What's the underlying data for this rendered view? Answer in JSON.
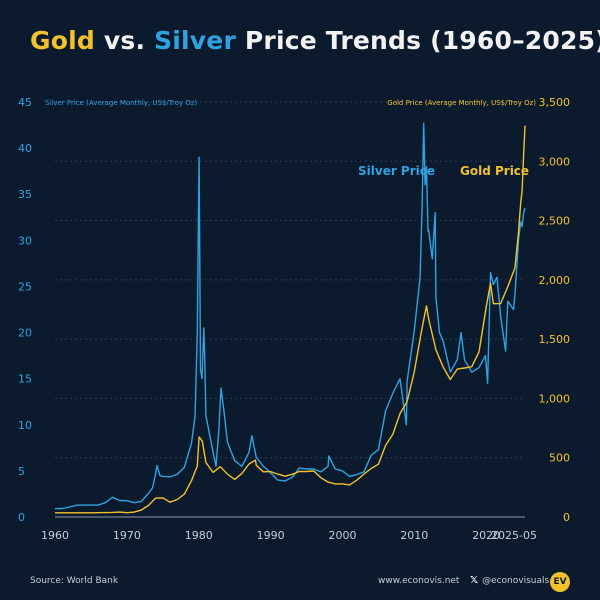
{
  "title": {
    "gold_word": "Gold",
    "vs_word": "vs.",
    "silver_word": "Silver",
    "rest": "Price Trends (1960–2025)"
  },
  "footer": {
    "source": "Source: World Bank",
    "website": "www.econovis.net",
    "social": "@econovisuals",
    "logo_text": "EV"
  },
  "colors": {
    "background": "#0c1a2e",
    "gold": "#f2c22e",
    "silver": "#2fa3e0",
    "grid": "#2a3a55",
    "text": "#c7cdd6"
  },
  "chart_data": {
    "type": "line",
    "ylabel_left": "Silver Price (Average Monthly, US$/Troy Oz)",
    "ylabel_right": "Gold Price (Average Monthly, US$/Troy Oz)",
    "ylim_left": [
      0,
      45
    ],
    "ylim_right": [
      0,
      3500
    ],
    "xlim": [
      1960,
      2025.4
    ],
    "x_ticks": [
      1960,
      1970,
      1980,
      1990,
      2000,
      2010,
      2020
    ],
    "x_tick_last": "2025-05",
    "y_ticks_left": [
      0,
      5,
      10,
      15,
      20,
      25,
      30,
      35,
      40,
      45
    ],
    "y_ticks_right": [
      0,
      500,
      1000,
      1500,
      2000,
      2500,
      3000,
      3500
    ],
    "y_ticks_right_labels": [
      "0",
      "500",
      "1,000",
      "1,500",
      "2,000",
      "2,500",
      "3,000",
      "3,500"
    ],
    "annotations": {
      "silver": "Silver Price",
      "gold": "Gold Price"
    },
    "series": [
      {
        "name": "Silver Price",
        "axis": "left",
        "points": [
          [
            1960,
            0.91
          ],
          [
            1961,
            0.92
          ],
          [
            1962,
            1.08
          ],
          [
            1963,
            1.28
          ],
          [
            1964,
            1.29
          ],
          [
            1965,
            1.29
          ],
          [
            1966,
            1.29
          ],
          [
            1967,
            1.55
          ],
          [
            1968,
            2.14
          ],
          [
            1969,
            1.79
          ],
          [
            1970,
            1.77
          ],
          [
            1971,
            1.55
          ],
          [
            1972,
            1.68
          ],
          [
            1973,
            2.56
          ],
          [
            1973.6,
            3.2
          ],
          [
            1974,
            4.7
          ],
          [
            1974.2,
            5.6
          ],
          [
            1974.6,
            4.5
          ],
          [
            1975,
            4.4
          ],
          [
            1976,
            4.35
          ],
          [
            1977,
            4.62
          ],
          [
            1978,
            5.4
          ],
          [
            1979,
            8.0
          ],
          [
            1979.5,
            11.0
          ],
          [
            1979.8,
            20.0
          ],
          [
            1980.05,
            39.0
          ],
          [
            1980.25,
            16.0
          ],
          [
            1980.45,
            15.0
          ],
          [
            1980.7,
            20.5
          ],
          [
            1980.85,
            17.0
          ],
          [
            1981,
            11.0
          ],
          [
            1981.5,
            9.0
          ],
          [
            1982,
            7.0
          ],
          [
            1982.4,
            5.5
          ],
          [
            1982.8,
            9.5
          ],
          [
            1983.1,
            14.0
          ],
          [
            1983.5,
            11.5
          ],
          [
            1984,
            8.1
          ],
          [
            1985,
            6.1
          ],
          [
            1986,
            5.5
          ],
          [
            1987,
            7.0
          ],
          [
            1987.4,
            8.8
          ],
          [
            1988,
            6.5
          ],
          [
            1989,
            5.5
          ],
          [
            1990,
            4.8
          ],
          [
            1991,
            4.0
          ],
          [
            1992,
            3.9
          ],
          [
            1993,
            4.3
          ],
          [
            1994,
            5.3
          ],
          [
            1995,
            5.2
          ],
          [
            1996,
            5.2
          ],
          [
            1997,
            4.9
          ],
          [
            1998,
            5.5
          ],
          [
            1998.1,
            6.6
          ],
          [
            1999,
            5.2
          ],
          [
            2000,
            5.0
          ],
          [
            2001,
            4.4
          ],
          [
            2002,
            4.6
          ],
          [
            2003,
            4.9
          ],
          [
            2004,
            6.7
          ],
          [
            2005,
            7.3
          ],
          [
            2006,
            11.5
          ],
          [
            2007,
            13.4
          ],
          [
            2008,
            15.0
          ],
          [
            2008.9,
            10.0
          ],
          [
            2009,
            14.7
          ],
          [
            2010,
            20.2
          ],
          [
            2010.8,
            26.0
          ],
          [
            2011.1,
            34.0
          ],
          [
            2011.3,
            42.7
          ],
          [
            2011.5,
            36.0
          ],
          [
            2011.7,
            38.0
          ],
          [
            2011.9,
            31.0
          ],
          [
            2012,
            31.1
          ],
          [
            2012.5,
            28.0
          ],
          [
            2012.9,
            33.0
          ],
          [
            2013,
            23.8
          ],
          [
            2013.5,
            20.0
          ],
          [
            2014,
            19.1
          ],
          [
            2015,
            15.7
          ],
          [
            2016,
            17.1
          ],
          [
            2016.5,
            20.0
          ],
          [
            2017,
            17.0
          ],
          [
            2018,
            15.7
          ],
          [
            2019,
            16.2
          ],
          [
            2019.9,
            17.5
          ],
          [
            2020.2,
            14.5
          ],
          [
            2020.6,
            26.5
          ],
          [
            2021,
            25.2
          ],
          [
            2021.5,
            26.0
          ],
          [
            2022,
            21.8
          ],
          [
            2022.7,
            18.0
          ],
          [
            2023,
            23.4
          ],
          [
            2023.8,
            22.5
          ],
          [
            2024,
            24.0
          ],
          [
            2024.5,
            30.0
          ],
          [
            2024.8,
            32.0
          ],
          [
            2025,
            31.5
          ],
          [
            2025.2,
            33.0
          ],
          [
            2025.4,
            33.5
          ]
        ]
      },
      {
        "name": "Gold Price",
        "axis": "right",
        "points": [
          [
            1960,
            35.3
          ],
          [
            1965,
            35.1
          ],
          [
            1968,
            39
          ],
          [
            1969,
            41
          ],
          [
            1970,
            36
          ],
          [
            1971,
            41
          ],
          [
            1972,
            58
          ],
          [
            1973,
            97
          ],
          [
            1974,
            159
          ],
          [
            1975,
            161
          ],
          [
            1976,
            125
          ],
          [
            1977,
            148
          ],
          [
            1978,
            193
          ],
          [
            1979,
            307
          ],
          [
            1979.8,
            430
          ],
          [
            1980.05,
            675
          ],
          [
            1980.5,
            640
          ],
          [
            1981,
            460
          ],
          [
            1982,
            376
          ],
          [
            1983,
            424
          ],
          [
            1984,
            361
          ],
          [
            1985,
            317
          ],
          [
            1986,
            368
          ],
          [
            1987,
            447
          ],
          [
            1987.9,
            480
          ],
          [
            1988,
            437
          ],
          [
            1989,
            381
          ],
          [
            1990,
            383
          ],
          [
            1991,
            362
          ],
          [
            1992,
            344
          ],
          [
            1993,
            360
          ],
          [
            1994,
            384
          ],
          [
            1995,
            384
          ],
          [
            1996,
            388
          ],
          [
            1997,
            331
          ],
          [
            1998,
            294
          ],
          [
            1999,
            279
          ],
          [
            2000,
            279
          ],
          [
            2001,
            271
          ],
          [
            2002,
            310
          ],
          [
            2003,
            363
          ],
          [
            2004,
            409
          ],
          [
            2005,
            445
          ],
          [
            2006,
            604
          ],
          [
            2007,
            697
          ],
          [
            2008,
            872
          ],
          [
            2009,
            972
          ],
          [
            2010,
            1225
          ],
          [
            2011,
            1569
          ],
          [
            2011.7,
            1780
          ],
          [
            2012,
            1669
          ],
          [
            2013,
            1411
          ],
          [
            2014,
            1266
          ],
          [
            2015,
            1160
          ],
          [
            2016,
            1249
          ],
          [
            2017,
            1257
          ],
          [
            2018,
            1268
          ],
          [
            2019,
            1392
          ],
          [
            2020,
            1770
          ],
          [
            2020.6,
            1970
          ],
          [
            2021,
            1799
          ],
          [
            2022,
            1800
          ],
          [
            2023,
            1943
          ],
          [
            2024,
            2100
          ],
          [
            2024.5,
            2400
          ],
          [
            2024.8,
            2650
          ],
          [
            2025,
            2750
          ],
          [
            2025.2,
            3050
          ],
          [
            2025.4,
            3300
          ]
        ]
      }
    ]
  }
}
